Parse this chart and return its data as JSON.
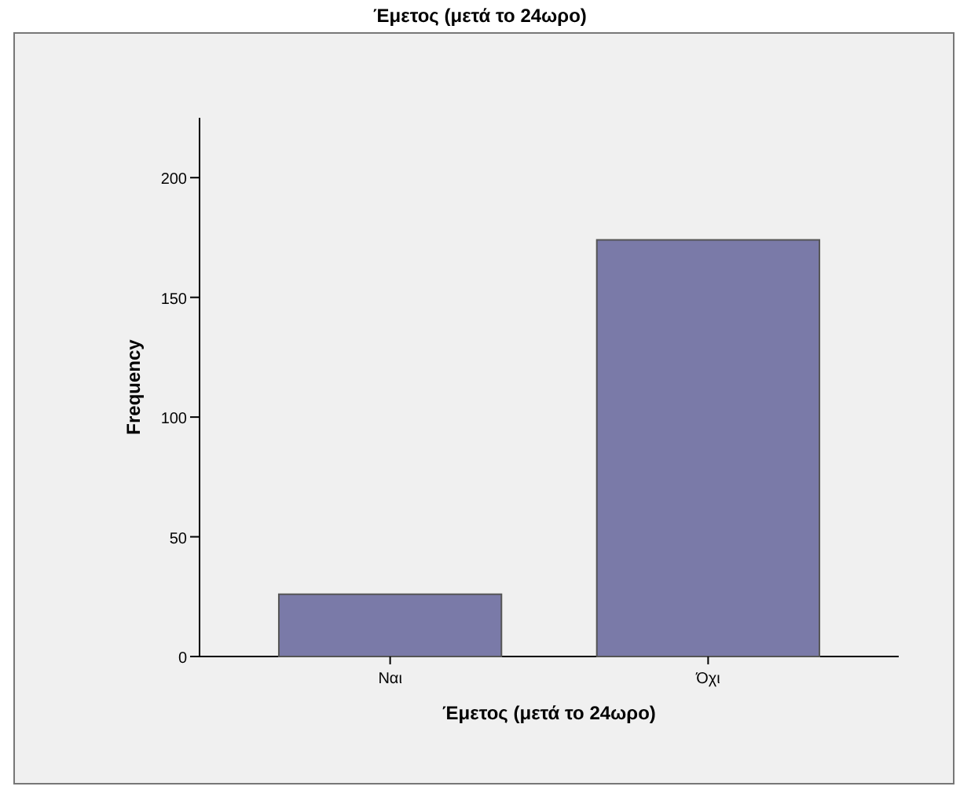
{
  "chart_data": {
    "type": "bar",
    "title": "Έμετος (μετά το 24ωρο)",
    "xlabel": "Έμετος (μετά το 24ωρο)",
    "ylabel": "Frequency",
    "categories": [
      "Ναι",
      "Όχι"
    ],
    "values": [
      26,
      174
    ],
    "color": "#7a7aa8",
    "ylim": [
      0,
      225
    ],
    "yticks": [
      0,
      50,
      100,
      150,
      200
    ],
    "grid": false
  }
}
